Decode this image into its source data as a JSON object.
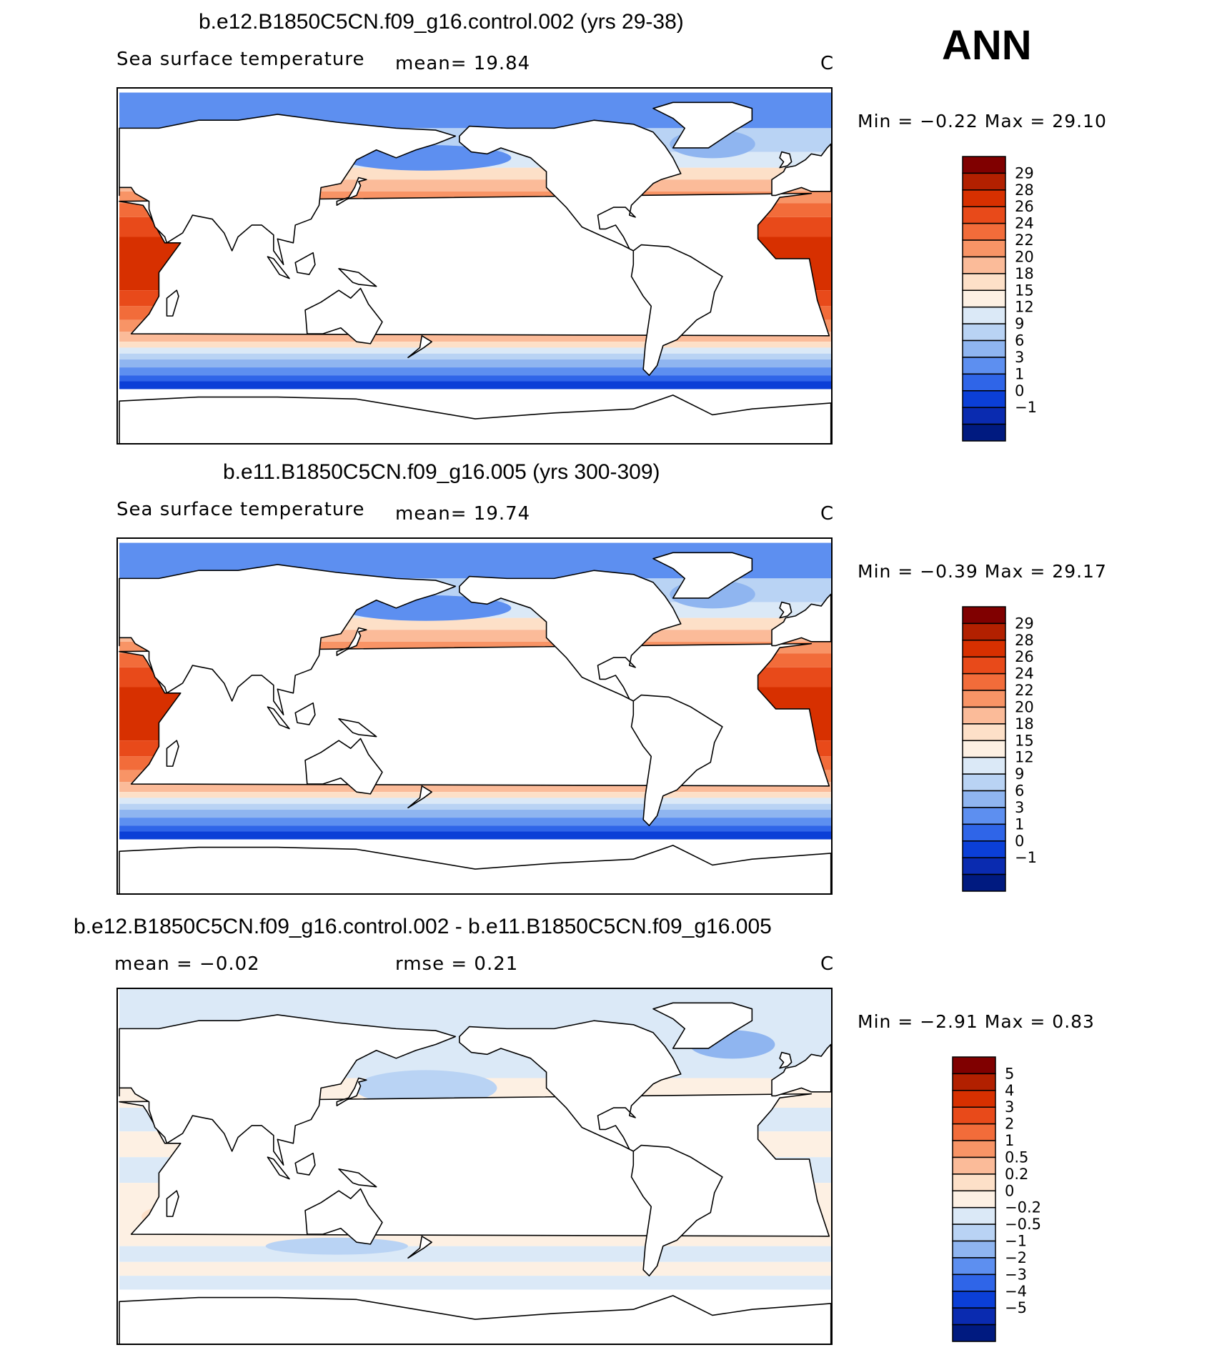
{
  "season": "ANN",
  "panels": [
    {
      "title": "b.e12.B1850C5CN.f09_g16.control.002 (yrs 29-38)",
      "variable": "Sea surface temperature",
      "stat_left": "",
      "stat_right": "mean=   19.84",
      "units": "C",
      "minmax": "Min =   −0.22 Max =   29.10",
      "colorbar": {
        "labels": [
          "29",
          "28",
          "26",
          "24",
          "22",
          "20",
          "18",
          "15",
          "12",
          "9",
          "6",
          "3",
          "1",
          "0",
          "−1"
        ],
        "colors": [
          "#800000",
          "#b22000",
          "#d73000",
          "#e84a1a",
          "#f26c3a",
          "#f89466",
          "#fbbb99",
          "#fde0c8",
          "#fdf0e3",
          "#dbe9f7",
          "#b9d3f4",
          "#8fb5f0",
          "#5d8ff0",
          "#2f65e8",
          "#0b3fd7",
          "#0a2bb0",
          "#001a80"
        ]
      },
      "style": "sst"
    },
    {
      "title": "b.e11.B1850C5CN.f09_g16.005 (yrs 300-309)",
      "variable": "Sea surface temperature",
      "stat_left": "",
      "stat_right": "mean=   19.74",
      "units": "C",
      "minmax": "Min =   −0.39 Max =   29.17",
      "colorbar": {
        "labels": [
          "29",
          "28",
          "26",
          "24",
          "22",
          "20",
          "18",
          "15",
          "12",
          "9",
          "6",
          "3",
          "1",
          "0",
          "−1"
        ],
        "colors": [
          "#800000",
          "#b22000",
          "#d73000",
          "#e84a1a",
          "#f26c3a",
          "#f89466",
          "#fbbb99",
          "#fde0c8",
          "#fdf0e3",
          "#dbe9f7",
          "#b9d3f4",
          "#8fb5f0",
          "#5d8ff0",
          "#2f65e8",
          "#0b3fd7",
          "#0a2bb0",
          "#001a80"
        ]
      },
      "style": "sst"
    },
    {
      "title": "b.e12.B1850C5CN.f09_g16.control.002 - b.e11.B1850C5CN.f09_g16.005",
      "variable": "",
      "stat_left": "mean =   −0.02",
      "stat_right": "rmse =    0.21",
      "units": "C",
      "minmax": "Min =   −2.91 Max =    0.83",
      "colorbar": {
        "labels": [
          "5",
          "4",
          "3",
          "2",
          "1",
          "0.5",
          "0.2",
          "0",
          "−0.2",
          "−0.5",
          "−1",
          "−2",
          "−3",
          "−4",
          "−5"
        ],
        "colors": [
          "#800000",
          "#b22000",
          "#d73000",
          "#e84a1a",
          "#f26c3a",
          "#f89466",
          "#fbbb99",
          "#fde0c8",
          "#fdf0e3",
          "#dbe9f7",
          "#b9d3f4",
          "#8fb5f0",
          "#5d8ff0",
          "#2f65e8",
          "#0b3fd7",
          "#0a2bb0",
          "#001a80"
        ]
      },
      "style": "diff"
    }
  ]
}
